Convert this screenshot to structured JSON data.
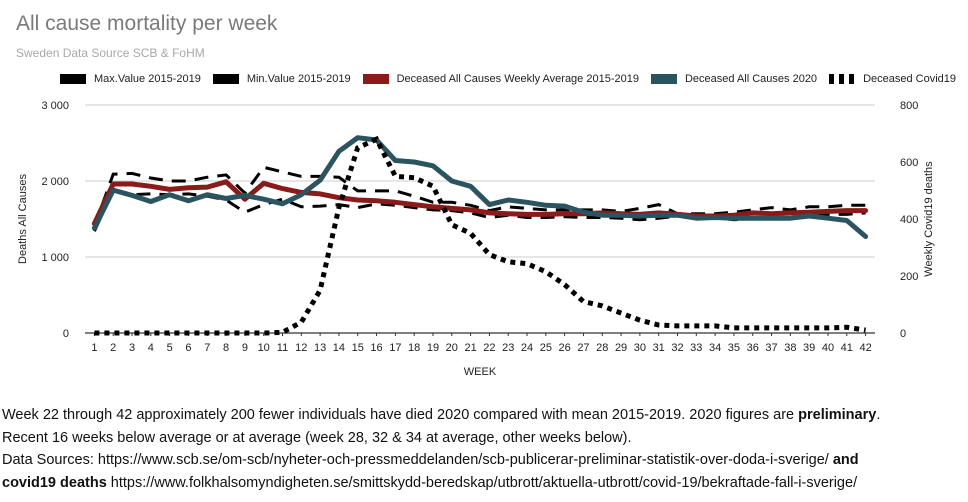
{
  "chart_data": {
    "type": "line",
    "title": "All cause mortality per week",
    "subtitle": "Sweden Data Source SCB & FoHM",
    "xlabel": "WEEK",
    "ylabel": "Deaths All Causes",
    "y2label": "Weekly Covid19 deaths",
    "ylim": [
      0,
      3000
    ],
    "y2lim": [
      0,
      800
    ],
    "yticks": [
      "0",
      "1 000",
      "2 000",
      "3 000"
    ],
    "y2ticks": [
      "0",
      "200",
      "400",
      "600",
      "800"
    ],
    "categories": [
      "1",
      "2",
      "3",
      "4",
      "5",
      "6",
      "7",
      "8",
      "9",
      "10",
      "11",
      "12",
      "13",
      "14",
      "15",
      "16",
      "17",
      "18",
      "19",
      "20",
      "21",
      "22",
      "23",
      "24",
      "25",
      "26",
      "27",
      "28",
      "29",
      "30",
      "31",
      "32",
      "33",
      "34",
      "35",
      "36",
      "37",
      "38",
      "39",
      "40",
      "41",
      "42"
    ],
    "legend_position": "top",
    "series": [
      {
        "name": "Max.Value 2015-2019",
        "style": "dashed",
        "color": "#000000",
        "axis": "left",
        "values": [
          1400,
          2090,
          2100,
          2040,
          2000,
          2000,
          2050,
          2080,
          1840,
          2180,
          2120,
          2060,
          2060,
          2050,
          1870,
          1870,
          1870,
          1800,
          1720,
          1720,
          1680,
          1610,
          1660,
          1640,
          1620,
          1620,
          1620,
          1620,
          1600,
          1640,
          1690,
          1570,
          1570,
          1570,
          1590,
          1620,
          1650,
          1620,
          1660,
          1660,
          1680,
          1680
        ]
      },
      {
        "name": "Min.Value 2015-2019",
        "style": "dashed",
        "color": "#000000",
        "axis": "left",
        "values": [
          1340,
          1880,
          1820,
          1830,
          1820,
          1830,
          1800,
          1750,
          1590,
          1690,
          1760,
          1660,
          1670,
          1690,
          1650,
          1700,
          1680,
          1650,
          1620,
          1610,
          1580,
          1520,
          1550,
          1520,
          1520,
          1530,
          1520,
          1520,
          1510,
          1490,
          1510,
          1540,
          1510,
          1520,
          1490,
          1510,
          1510,
          1530,
          1530,
          1560,
          1560,
          1580
        ]
      },
      {
        "name": "Deceased All Causes Weekly Average 2015-2019",
        "style": "solid",
        "color": "#8b1a1a",
        "axis": "left",
        "values": [
          1440,
          1960,
          1960,
          1930,
          1890,
          1910,
          1920,
          1990,
          1760,
          1970,
          1900,
          1850,
          1830,
          1780,
          1750,
          1740,
          1720,
          1690,
          1660,
          1640,
          1620,
          1580,
          1570,
          1560,
          1560,
          1570,
          1570,
          1580,
          1570,
          1560,
          1580,
          1560,
          1540,
          1540,
          1550,
          1580,
          1570,
          1580,
          1590,
          1600,
          1610,
          1610
        ]
      },
      {
        "name": "Deceased All Causes 2020",
        "style": "solid",
        "color": "#2a5560",
        "axis": "left",
        "values": [
          1380,
          1880,
          1810,
          1730,
          1820,
          1740,
          1820,
          1770,
          1810,
          1760,
          1700,
          1820,
          2010,
          2390,
          2570,
          2540,
          2270,
          2250,
          2200,
          2000,
          1930,
          1690,
          1750,
          1720,
          1680,
          1670,
          1590,
          1550,
          1550,
          1540,
          1550,
          1550,
          1510,
          1520,
          1510,
          1510,
          1510,
          1510,
          1540,
          1510,
          1480,
          1270
        ]
      },
      {
        "name": "Deceased Covid19",
        "style": "dotted",
        "color": "#000000",
        "axis": "right",
        "values": [
          0,
          0,
          0,
          0,
          0,
          0,
          0,
          0,
          0,
          0,
          2,
          38,
          150,
          440,
          650,
          680,
          550,
          545,
          515,
          380,
          350,
          275,
          250,
          243,
          215,
          170,
          110,
          95,
          70,
          45,
          28,
          25,
          25,
          25,
          18,
          18,
          18,
          18,
          18,
          18,
          20,
          10
        ]
      }
    ]
  },
  "caption": {
    "line1": "Week 22 through 42 approximately 200 fewer individuals have died 2020 compared with mean 2015-2019. 2020 figures are ",
    "line1_bold": "preliminary",
    "line1_end": ".",
    "line2": "Recent 16 weeks below average or at average (week 28, 32 & 34 at average, other weeks below).",
    "line3": "Data Sources: https://www.scb.se/om-scb/nyheter-och-pressmeddelanden/scb-publicerar-preliminar-statistik-over-doda-i-sverige/ ",
    "line3_bold": "and",
    "line4_bold": "covid19 deaths",
    "line4": " https://www.folkhalsomyndigheten.se/smittskydd-beredskap/utbrott/aktuella-utbrott/covid-19/bekraftade-fall-i-sverige/"
  }
}
